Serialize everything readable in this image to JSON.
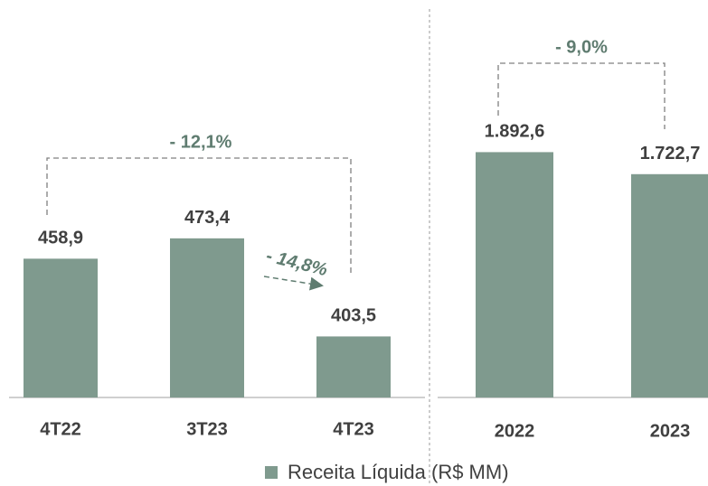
{
  "chart_data": [
    {
      "type": "bar",
      "categories": [
        "4T22",
        "3T23",
        "4T23"
      ],
      "series": [
        {
          "name": "Receita Líquida (R$ MM)",
          "color": "#7f9a8e",
          "values": [
            458.9,
            473.4,
            403.5
          ],
          "value_labels": [
            "458,9",
            "473,4",
            "403,5"
          ]
        }
      ],
      "ylim": [
        360,
        566
      ],
      "annotations": [
        "- 12,1%",
        "- 14,8%"
      ]
    },
    {
      "type": "bar",
      "categories": [
        "2022",
        "2023"
      ],
      "series": [
        {
          "color": "#7f9a8e",
          "values": [
            1892.6,
            1722.7
          ],
          "value_labels": [
            "1.892,6",
            "1.722,7"
          ]
        }
      ],
      "ylim": [
        0,
        2230
      ],
      "annotations": [
        "- 9,0%"
      ]
    }
  ]
}
